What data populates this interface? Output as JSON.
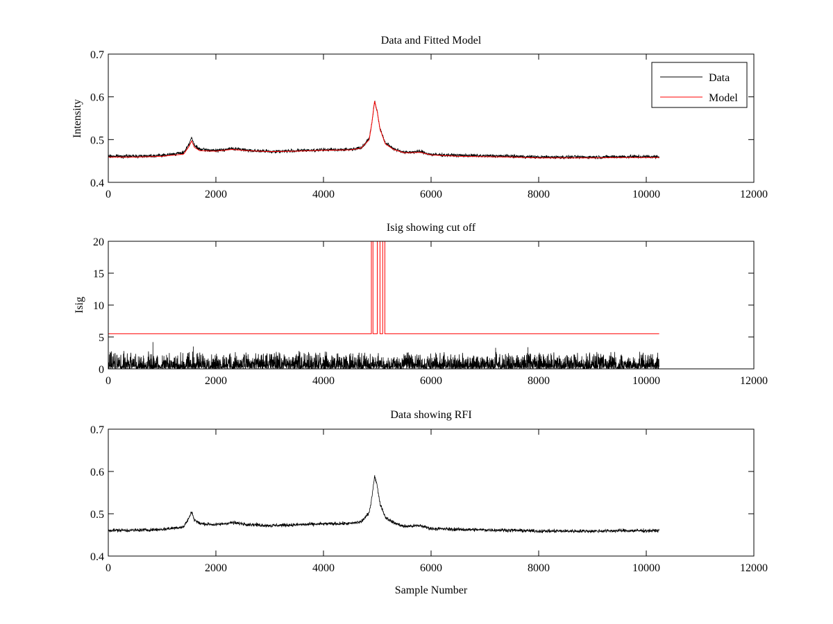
{
  "chart_data": [
    {
      "type": "line",
      "title": "Data and Fitted Model",
      "xlabel": "",
      "ylabel": "Intensity",
      "xlim": [
        0,
        12000
      ],
      "ylim": [
        0.4,
        0.7
      ],
      "xticks": [
        "0",
        "2000",
        "4000",
        "6000",
        "8000",
        "10000",
        "12000"
      ],
      "yticks": [
        "0.4",
        "0.5",
        "0.6",
        "0.7"
      ],
      "legend": {
        "position": "top-right",
        "entries": [
          "Data",
          "Model"
        ]
      },
      "series": [
        {
          "name": "Data",
          "color": "#000000",
          "noise": 0.006,
          "x": [
            0,
            500,
            1000,
            1400,
            1500,
            1550,
            1600,
            1700,
            2000,
            2300,
            2600,
            3000,
            3500,
            4000,
            4500,
            4700,
            4850,
            4900,
            4950,
            5000,
            5050,
            5150,
            5300,
            5500,
            5800,
            6000,
            6500,
            7000,
            7500,
            8000,
            8500,
            9000,
            9500,
            10000,
            10240
          ],
          "y": [
            0.461,
            0.461,
            0.463,
            0.469,
            0.49,
            0.505,
            0.486,
            0.477,
            0.474,
            0.479,
            0.475,
            0.472,
            0.474,
            0.476,
            0.477,
            0.481,
            0.502,
            0.54,
            0.59,
            0.565,
            0.525,
            0.492,
            0.479,
            0.47,
            0.472,
            0.465,
            0.463,
            0.462,
            0.461,
            0.459,
            0.459,
            0.459,
            0.46,
            0.46,
            0.46
          ]
        },
        {
          "name": "Model",
          "color": "#ff0000",
          "x": [
            0,
            500,
            1000,
            1400,
            1500,
            1550,
            1600,
            1700,
            2000,
            2300,
            2600,
            3000,
            3500,
            4000,
            4500,
            4700,
            4850,
            4900,
            4950,
            5000,
            5050,
            5150,
            5300,
            5500,
            5800,
            6000,
            6500,
            7000,
            7500,
            8000,
            8500,
            9000,
            9500,
            10000,
            10240
          ],
          "y": [
            0.459,
            0.459,
            0.461,
            0.466,
            0.484,
            0.497,
            0.482,
            0.474,
            0.473,
            0.477,
            0.474,
            0.472,
            0.473,
            0.475,
            0.476,
            0.48,
            0.5,
            0.54,
            0.59,
            0.565,
            0.525,
            0.49,
            0.477,
            0.469,
            0.47,
            0.464,
            0.461,
            0.46,
            0.459,
            0.457,
            0.457,
            0.457,
            0.458,
            0.458,
            0.458
          ]
        }
      ]
    },
    {
      "type": "line",
      "title": "Isig showing cut off",
      "xlabel": "",
      "ylabel": "Isig",
      "xlim": [
        0,
        12000
      ],
      "ylim": [
        0,
        20
      ],
      "xticks": [
        "0",
        "2000",
        "4000",
        "6000",
        "8000",
        "10000",
        "12000"
      ],
      "yticks": [
        "0",
        "5",
        "10",
        "15",
        "20"
      ],
      "series": [
        {
          "name": "",
          "color": "#000000",
          "noise_max": 1.8,
          "spikes": [
            [
              830,
              4.2
            ],
            [
              1580,
              3.5
            ],
            [
              7200,
              3.3
            ],
            [
              7800,
              3.4
            ]
          ],
          "x": [
            0,
            10240
          ],
          "y": [
            0,
            0
          ]
        },
        {
          "name": "",
          "color": "#ff0000",
          "x": [
            0,
            4890,
            4890,
            4920,
            4920,
            5000,
            5000,
            5050,
            5050,
            5100,
            5100,
            5140,
            5140,
            10240
          ],
          "y": [
            5.5,
            5.5,
            20,
            20,
            5.5,
            5.5,
            20,
            20,
            5.5,
            5.5,
            20,
            20,
            5.5,
            5.5
          ]
        }
      ]
    },
    {
      "type": "line",
      "title": "Data showing RFI",
      "xlabel": "Sample Number",
      "ylabel": "",
      "xlim": [
        0,
        12000
      ],
      "ylim": [
        0.4,
        0.7
      ],
      "xticks": [
        "0",
        "2000",
        "4000",
        "6000",
        "8000",
        "10000",
        "12000"
      ],
      "yticks": [
        "0.4",
        "0.5",
        "0.6",
        "0.7"
      ],
      "series": [
        {
          "name": "",
          "color": "#000000",
          "noise": 0.006,
          "x": [
            0,
            500,
            1000,
            1400,
            1500,
            1550,
            1600,
            1700,
            2000,
            2300,
            2600,
            3000,
            3500,
            4000,
            4500,
            4700,
            4850,
            4900,
            4950,
            5000,
            5050,
            5150,
            5300,
            5500,
            5800,
            6000,
            6500,
            7000,
            7500,
            8000,
            8500,
            9000,
            9500,
            10000,
            10240
          ],
          "y": [
            0.461,
            0.461,
            0.463,
            0.469,
            0.49,
            0.505,
            0.486,
            0.477,
            0.474,
            0.479,
            0.475,
            0.472,
            0.474,
            0.476,
            0.477,
            0.481,
            0.502,
            0.54,
            0.59,
            0.565,
            0.525,
            0.492,
            0.479,
            0.47,
            0.472,
            0.465,
            0.463,
            0.462,
            0.461,
            0.459,
            0.459,
            0.459,
            0.46,
            0.46,
            0.46
          ]
        }
      ]
    }
  ]
}
